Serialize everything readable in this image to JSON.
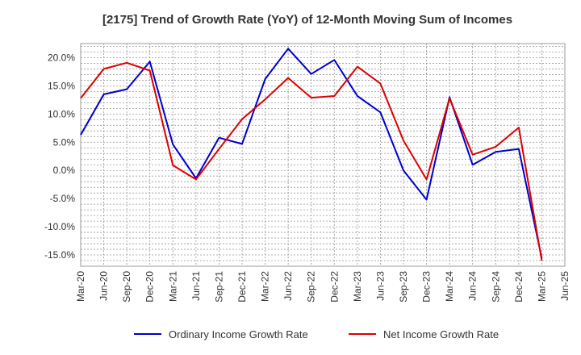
{
  "chart_data": {
    "type": "line",
    "title": "[2175]  Trend of Growth Rate (YoY) of 12-Month Moving Sum of Incomes",
    "xlabel": "",
    "ylabel": "",
    "x": [
      "Mar-20",
      "Jun-20",
      "Sep-20",
      "Dec-20",
      "Mar-21",
      "Jun-21",
      "Sep-21",
      "Dec-21",
      "Mar-22",
      "Jun-22",
      "Sep-22",
      "Dec-22",
      "Mar-23",
      "Jun-23",
      "Sep-23",
      "Dec-23",
      "Mar-24",
      "Jun-24",
      "Sep-24",
      "Dec-24",
      "Mar-25",
      "Jun-25"
    ],
    "ylim": [
      -17,
      22.5
    ],
    "yticks": [
      20,
      15,
      10,
      5,
      0,
      -5,
      -10,
      -15
    ],
    "ytick_labels": [
      "20.0%",
      "15.0%",
      "10.0%",
      "5.0%",
      "0.0%",
      "-5.0%",
      "-10.0%",
      "-15.0%"
    ],
    "grid": true,
    "legend_position": "bottom",
    "series": [
      {
        "name": "Ordinary Income Growth Rate",
        "color": "#0000cc",
        "values": [
          6.3,
          13.5,
          14.4,
          19.3,
          4.6,
          -1.4,
          5.8,
          4.7,
          16.2,
          21.6,
          17.1,
          19.6,
          13.2,
          10.3,
          0.0,
          -5.2,
          13.0,
          1.0,
          3.3,
          3.8,
          -15.6,
          null
        ]
      },
      {
        "name": "Net Income Growth Rate",
        "color": "#dd0000",
        "values": [
          12.8,
          18.0,
          19.1,
          17.7,
          0.9,
          -1.6,
          3.8,
          9.1,
          12.6,
          16.4,
          12.9,
          13.2,
          18.4,
          15.4,
          5.3,
          -1.6,
          12.8,
          2.8,
          4.2,
          7.6,
          -16.0,
          null
        ]
      }
    ]
  }
}
